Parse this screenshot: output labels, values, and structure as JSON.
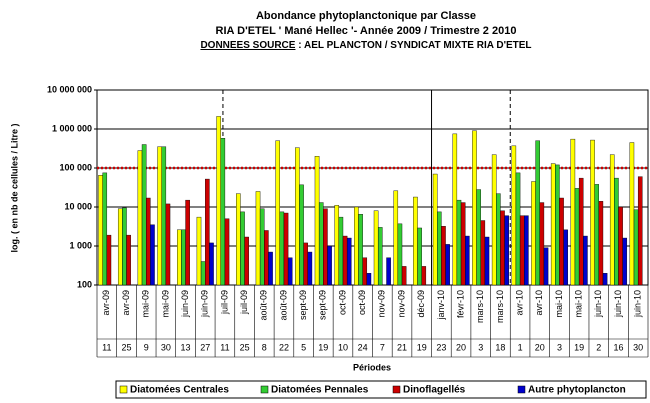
{
  "chart_data": {
    "type": "bar",
    "title": "Abondance phytoplanctonique par Classe",
    "subtitle": "RIA D'ETEL ' Mané Hellec '- Année 2009 / Trimestre 2 2010",
    "source_label": "DONNEES SOURCE",
    "source_text": " : AEL PLANCTON / SYNDICAT MIXTE RIA D'ETEL",
    "x_label": "Périodes",
    "y_label": "log. ( en nb de cellules / Litre )",
    "categories": [
      "avr-09",
      "avr-09",
      "mai-09",
      "mai-09",
      "juin-09",
      "juin-09",
      "juil-09",
      "juil-09",
      "août-09",
      "août-09",
      "sept-09",
      "sept-09",
      "oct-09",
      "oct-09",
      "nov-09",
      "nov-09",
      "déc-09",
      "janv-10",
      "févr-10",
      "mars-10",
      "mars-10",
      "avr-10",
      "avr-10",
      "mai-10",
      "mai-10",
      "juin-10",
      "juin-10",
      "juin-10"
    ],
    "days": [
      11,
      25,
      9,
      30,
      13,
      27,
      11,
      25,
      8,
      22,
      5,
      19,
      10,
      24,
      7,
      21,
      19,
      23,
      20,
      3,
      18,
      1,
      20,
      3,
      19,
      2,
      16,
      30
    ],
    "series": [
      {
        "name": "Diatomées Centrales",
        "color": "#ffff00",
        "values": [
          65000,
          9000,
          280000,
          350000,
          2600,
          5500,
          2100000,
          22000,
          25000,
          500000,
          330000,
          200000,
          11000,
          10000,
          8000,
          26000,
          18000,
          70000,
          750000,
          900000,
          220000,
          370000,
          45000,
          130000,
          550000,
          520000,
          220000,
          450000
        ]
      },
      {
        "name": "Diatomées Pennales",
        "color": "#33cc33",
        "values": [
          75000,
          9500,
          400000,
          350000,
          2600,
          400,
          580000,
          7500,
          9000,
          7500,
          37000,
          13000,
          5500,
          6500,
          3000,
          3700,
          2900,
          7500,
          15000,
          28000,
          22000,
          75000,
          500000,
          120000,
          30000,
          38000,
          55000,
          8500
        ]
      },
      {
        "name": "Dinoflagellés",
        "color": "#cc0000",
        "values": [
          1900,
          1900,
          17000,
          12000,
          15000,
          52000,
          5000,
          1700,
          2500,
          7000,
          1200,
          9000,
          1800,
          500,
          null,
          300,
          300,
          3200,
          13000,
          4500,
          8000,
          6000,
          13000,
          17000,
          55000,
          14000,
          10000,
          60000
        ]
      },
      {
        "name": "Autre phytoplancton",
        "color": "#0000cc",
        "values": [
          null,
          null,
          3500,
          null,
          null,
          1200,
          null,
          null,
          700,
          500,
          700,
          1000,
          1600,
          200,
          500,
          null,
          null,
          1100,
          1800,
          1700,
          6000,
          6000,
          900,
          2600,
          1800,
          200,
          1600,
          null
        ]
      }
    ],
    "ylim": [
      100,
      10000000
    ],
    "yticks": [
      100,
      {
        "value": 1000,
        "label": "1 000"
      },
      {
        "value": 10000,
        "label": "10 000"
      },
      {
        "value": 100000,
        "label": "100 000"
      },
      {
        "value": 1000000,
        "label": "1 000 000"
      },
      {
        "value": 10000000,
        "label": "10 000 000"
      }
    ],
    "log_scale": true,
    "grid": true,
    "threshold": 100000,
    "threshold_color": "#cc0000",
    "legend": "bottom"
  }
}
